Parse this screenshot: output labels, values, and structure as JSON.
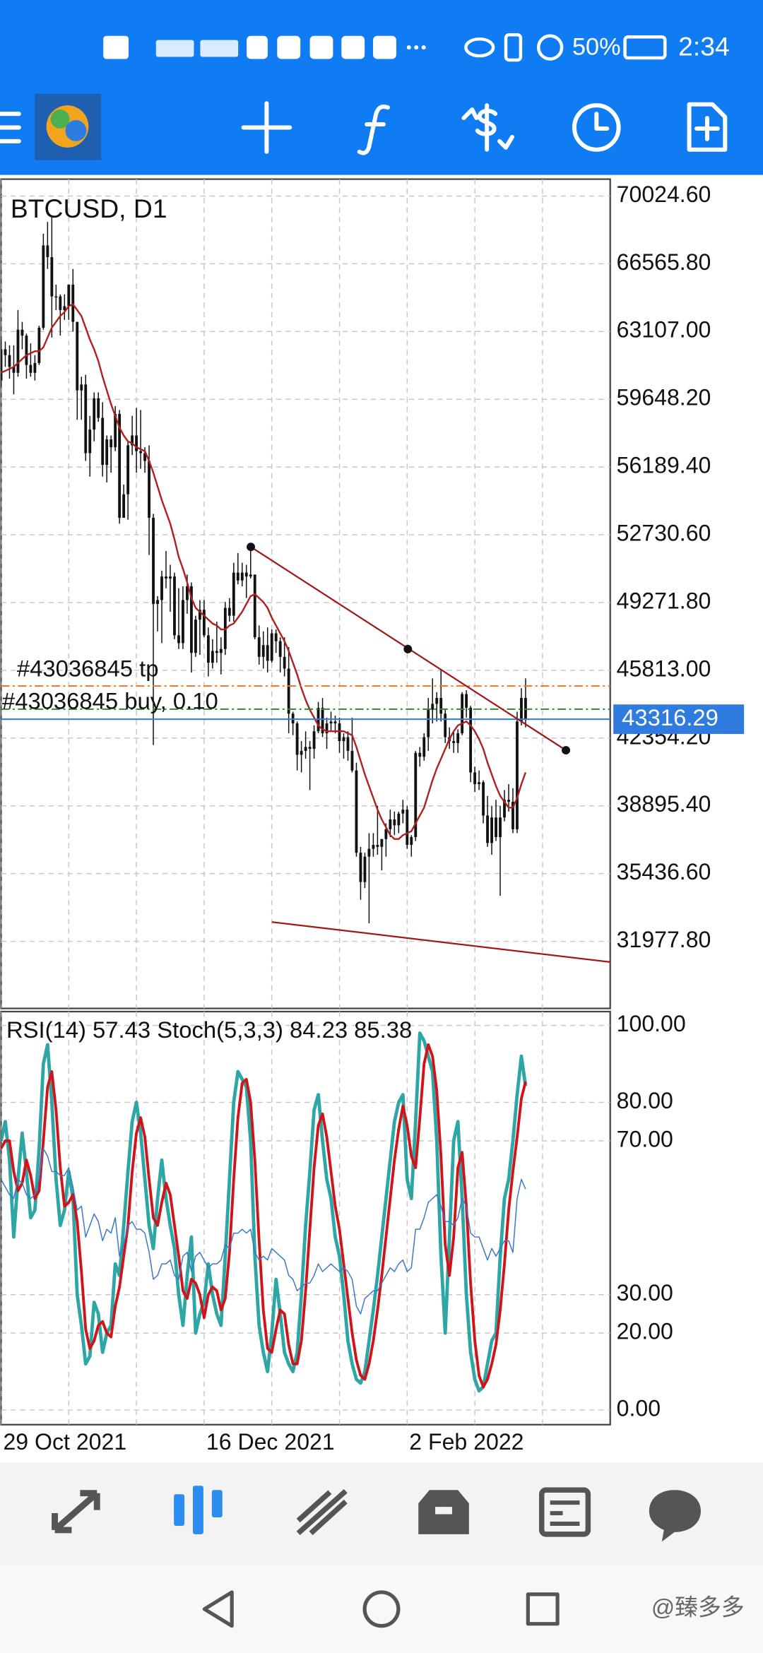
{
  "status_bar": {
    "battery": "50%",
    "time": "2:34"
  },
  "chart_data": [
    {
      "type": "candlestick",
      "title": "BTCUSD, D1",
      "color": "#111111",
      "open": [
        60600,
        62200,
        61900,
        61300,
        61000,
        63200,
        62900,
        61400,
        61000,
        61500,
        63300,
        67500,
        66900,
        64900,
        64900,
        64200,
        64400,
        65500,
        63600,
        60100,
        60400,
        56900,
        58100,
        59700,
        58700,
        56300,
        57600,
        57200,
        58900,
        53600,
        54800,
        57300,
        57800,
        57000,
        56900,
        56500,
        53600,
        49200,
        49400,
        50600,
        50500,
        50600,
        47600,
        47200,
        49400,
        50100,
        46700,
        48400,
        48900,
        47600,
        46200,
        46800,
        46700,
        46900,
        49000,
        48600,
        50800,
        50400,
        50800,
        50600,
        50700,
        47500,
        46500,
        47100,
        46300,
        47700,
        47300,
        46500,
        45900,
        43600,
        43100,
        41500,
        41700,
        41900,
        41800,
        42700,
        43900,
        42600,
        43100,
        43200,
        43100,
        42200,
        42400,
        41700,
        40700,
        36500,
        35000,
        36300,
        36700,
        36900,
        36800,
        37200,
        37700,
        38200,
        37900,
        38500,
        38700,
        36900,
        37300,
        41600,
        41400,
        42400,
        43800,
        44100,
        44400,
        43600,
        42400,
        42200,
        42100,
        42600,
        44600,
        43900,
        40600,
        40000,
        40100,
        38400,
        37000,
        38300,
        37300,
        38300,
        39200,
        39100,
        37700,
        43200,
        44400
      ],
      "high": [
        62700,
        62600,
        62400,
        62400,
        64200,
        63600,
        63000,
        62500,
        61900,
        63400,
        68100,
        68700,
        69000,
        65500,
        65000,
        65000,
        65500,
        66300,
        63600,
        60800,
        60900,
        58800,
        60000,
        60000,
        59500,
        57800,
        57800,
        59300,
        59100,
        55300,
        57500,
        58800,
        59200,
        59100,
        57200,
        57300,
        53800,
        49600,
        50900,
        51900,
        51200,
        50800,
        50000,
        50100,
        50700,
        50300,
        48600,
        49400,
        49400,
        48000,
        47400,
        48300,
        47500,
        49300,
        49500,
        51300,
        51800,
        51300,
        51200,
        52000,
        50700,
        48100,
        47800,
        48000,
        47900,
        47900,
        47500,
        47500,
        47000,
        43700,
        43200,
        42200,
        42700,
        42200,
        43000,
        44200,
        44400,
        43400,
        43700,
        43500,
        43400,
        42600,
        42700,
        43400,
        41100,
        36800,
        36500,
        37500,
        37500,
        38900,
        37200,
        38000,
        38700,
        38600,
        38600,
        39200,
        38900,
        37400,
        41700,
        41900,
        42600,
        44400,
        45400,
        44700,
        45800,
        43800,
        42900,
        42700,
        42800,
        44700,
        44800,
        44000,
        40900,
        40700,
        40200,
        39400,
        38900,
        39200,
        38900,
        39700,
        40000,
        39800,
        43700,
        44900,
        45400
      ],
      "low": [
        60300,
        61300,
        60700,
        59900,
        60800,
        62200,
        60700,
        60800,
        60600,
        61400,
        63200,
        66300,
        62800,
        64200,
        62900,
        63700,
        63700,
        63100,
        58600,
        58600,
        56500,
        55700,
        57500,
        58500,
        55700,
        55400,
        55900,
        57000,
        53300,
        53600,
        53500,
        56800,
        55900,
        56100,
        55900,
        51700,
        42000,
        47800,
        47200,
        50000,
        48800,
        47400,
        46900,
        46900,
        48700,
        45700,
        46500,
        46600,
        47500,
        45500,
        45900,
        46200,
        45600,
        46600,
        48300,
        48300,
        50200,
        50100,
        49500,
        50500,
        47400,
        46100,
        45900,
        45700,
        46200,
        46700,
        45700,
        45500,
        42600,
        42500,
        40700,
        40600,
        41300,
        39700,
        41300,
        42600,
        42400,
        41800,
        42700,
        42600,
        41600,
        41300,
        41200,
        40600,
        36300,
        34100,
        34700,
        32900,
        36300,
        36400,
        35600,
        36300,
        37300,
        37400,
        37500,
        38000,
        36700,
        36300,
        37100,
        40900,
        41200,
        41700,
        43100,
        43200,
        43200,
        42100,
        41800,
        41600,
        41600,
        42500,
        43400,
        40100,
        39600,
        39700,
        38000,
        36800,
        36400,
        37100,
        34300,
        38100,
        38600,
        37500,
        37500,
        43000,
        42900
      ],
      "close": [
        62200,
        61900,
        61300,
        61000,
        63200,
        62900,
        61400,
        61000,
        61500,
        63300,
        67500,
        66900,
        64900,
        64900,
        64200,
        64400,
        65500,
        63600,
        60100,
        60400,
        56900,
        58100,
        59700,
        58700,
        56300,
        57600,
        57200,
        58900,
        53600,
        54800,
        57300,
        57800,
        57000,
        56900,
        56500,
        53600,
        49200,
        49400,
        50600,
        50500,
        50600,
        47600,
        47200,
        49400,
        50100,
        46700,
        48400,
        48900,
        47600,
        46200,
        46800,
        46700,
        46900,
        49000,
        48600,
        50800,
        50400,
        50800,
        50600,
        50700,
        47500,
        46500,
        47100,
        46300,
        47700,
        47300,
        46500,
        45900,
        43600,
        43100,
        41500,
        41700,
        41900,
        41800,
        42700,
        43900,
        42600,
        43100,
        43200,
        43100,
        42200,
        42400,
        41700,
        40700,
        36500,
        35000,
        36300,
        36700,
        36900,
        36800,
        37200,
        37700,
        38200,
        37900,
        38500,
        38700,
        36900,
        37300,
        41600,
        41400,
        42400,
        43800,
        44100,
        44400,
        43600,
        42400,
        42200,
        42100,
        42600,
        44600,
        43900,
        40600,
        40000,
        40100,
        38400,
        37000,
        38300,
        37300,
        38300,
        39200,
        39100,
        37700,
        43200,
        44400,
        43316.29
      ],
      "ma": {
        "color": "#b01e1e",
        "values": [
          61000,
          61100,
          61200,
          61300,
          61500,
          61700,
          61900,
          62000,
          62100,
          62100,
          62300,
          62800,
          63300,
          63600,
          63900,
          64100,
          64400,
          64500,
          64200,
          63900,
          63300,
          62700,
          62200,
          61600,
          60800,
          60100,
          59400,
          58800,
          58200,
          57800,
          57500,
          57400,
          57200,
          57100,
          57000,
          56500,
          55900,
          55200,
          54500,
          53900,
          53300,
          52500,
          51600,
          51000,
          50300,
          49500,
          49000,
          48800,
          48600,
          48400,
          48200,
          48100,
          47900,
          47900,
          48100,
          48200,
          48500,
          48800,
          49200,
          49600,
          49700,
          49500,
          49300,
          49000,
          48500,
          48100,
          47700,
          47300,
          46800,
          46200,
          45600,
          44900,
          44300,
          43800,
          43400,
          43000,
          42800,
          42700,
          42700,
          42700,
          42700,
          42700,
          42600,
          42500,
          41900,
          41200,
          40500,
          39900,
          39300,
          38700,
          38200,
          37800,
          37400,
          37200,
          37200,
          37400,
          37500,
          37600,
          38000,
          38400,
          38800,
          39500,
          40200,
          40800,
          41300,
          41800,
          42300,
          42700,
          43000,
          43100,
          43200,
          43000,
          42700,
          42300,
          41800,
          41100,
          40500,
          39900,
          39400,
          39100,
          38800,
          38800,
          39300,
          40000,
          40600
        ]
      },
      "xlim": [
        0,
        144
      ],
      "xticks": [
        {
          "value": 0,
          "label": "29 Oct 2021"
        },
        {
          "value": 48,
          "label": "16 Dec 2021"
        },
        {
          "value": 96,
          "label": "2 Feb 2022"
        }
      ],
      "xgrid": [
        16,
        32,
        64,
        80,
        112,
        128
      ],
      "ylim": [
        28553,
        70885
      ],
      "yticks": [
        {
          "value": 70024.6,
          "label": "70024.60"
        },
        {
          "value": 66565.8,
          "label": "66565.80"
        },
        {
          "value": 63107,
          "label": "63107.00"
        },
        {
          "value": 59648.2,
          "label": "59648.20"
        },
        {
          "value": 56189.4,
          "label": "56189.40"
        },
        {
          "value": 52730.6,
          "label": "52730.60"
        },
        {
          "value": 49271.8,
          "label": "49271.80"
        },
        {
          "value": 45813,
          "label": "45813.00"
        },
        {
          "value": 42354.2,
          "label": "42354.20"
        },
        {
          "value": 38895.4,
          "label": "38895.40"
        },
        {
          "value": 35436.6,
          "label": "35436.60"
        },
        {
          "value": 31977.8,
          "label": "31977.80"
        }
      ],
      "grid": true,
      "current_price": {
        "value": 43316.29,
        "label": "43316.29",
        "color": "#2f7be0"
      },
      "orders": [
        {
          "label": "#43036845 tp",
          "value": 45010,
          "color": "#e07a2a"
        },
        {
          "label": "#43036845 buy, 0.10",
          "value": 43830,
          "color": "#2e8b2e"
        }
      ]
    },
    {
      "type": "line",
      "title": "RSI(14) 57.43 Stoch(5,3,3) 84.23 85.38",
      "series": [
        {
          "color": "#2ea6a6",
          "width": 3.2,
          "values": [
            70,
            75,
            65,
            45,
            60,
            72,
            62,
            50,
            52,
            68,
            90,
            95,
            80,
            60,
            48,
            52,
            62,
            55,
            30,
            22,
            12,
            14,
            28,
            25,
            15,
            20,
            22,
            38,
            35,
            48,
            62,
            75,
            80,
            72,
            60,
            48,
            42,
            55,
            65,
            55,
            48,
            42,
            30,
            22,
            35,
            45,
            20,
            25,
            28,
            38,
            30,
            25,
            22,
            40,
            60,
            80,
            88,
            86,
            84,
            70,
            40,
            22,
            15,
            10,
            20,
            34,
            25,
            15,
            12,
            10,
            15,
            30,
            48,
            62,
            78,
            82,
            70,
            60,
            55,
            45,
            40,
            30,
            18,
            12,
            8,
            7,
            10,
            18,
            26,
            35,
            45,
            55,
            65,
            75,
            80,
            82,
            60,
            55,
            75,
            98,
            96,
            92,
            88,
            70,
            40,
            20,
            45,
            70,
            75,
            55,
            30,
            15,
            8,
            5,
            6,
            12,
            18,
            20,
            40,
            55,
            60,
            70,
            82,
            92,
            84.23
          ]
        },
        {
          "color": "#d0151a",
          "width": 2.6,
          "values": [
            68,
            70,
            70,
            62,
            57,
            59,
            65,
            61,
            55,
            57,
            70,
            84,
            88,
            78,
            63,
            53,
            54,
            56,
            49,
            36,
            21,
            16,
            18,
            22,
            23,
            20,
            19,
            27,
            32,
            40,
            48,
            62,
            72,
            76,
            71,
            60,
            50,
            48,
            54,
            59,
            56,
            48,
            40,
            31,
            29,
            34,
            33,
            30,
            24,
            30,
            32,
            31,
            26,
            29,
            41,
            60,
            76,
            85,
            86,
            80,
            65,
            44,
            26,
            16,
            15,
            21,
            26,
            25,
            17,
            12,
            12,
            18,
            31,
            47,
            63,
            74,
            77,
            71,
            62,
            53,
            47,
            38,
            29,
            20,
            13,
            9,
            8,
            12,
            18,
            26,
            35,
            45,
            55,
            65,
            73,
            79,
            74,
            66,
            63,
            76,
            90,
            95,
            92,
            83,
            66,
            43,
            35,
            45,
            63,
            67,
            53,
            33,
            18,
            9,
            6,
            8,
            12,
            17,
            26,
            38,
            52,
            62,
            71,
            81,
            85.38
          ]
        },
        {
          "color": "#3a78c8",
          "width": 1,
          "values": [
            60,
            58,
            56,
            55,
            60,
            59,
            56,
            55,
            56,
            60,
            68,
            66,
            62,
            62,
            61,
            61,
            63,
            58,
            52,
            53,
            45,
            48,
            51,
            49,
            44,
            47,
            46,
            50,
            40,
            43,
            48,
            49,
            47,
            47,
            46,
            41,
            34,
            35,
            38,
            38,
            39,
            35,
            34,
            40,
            41,
            36,
            40,
            41,
            39,
            37,
            38,
            38,
            39,
            43,
            42,
            46,
            46,
            47,
            46,
            47,
            41,
            39,
            40,
            39,
            42,
            41,
            40,
            39,
            35,
            34,
            31,
            32,
            33,
            33,
            35,
            38,
            36,
            37,
            38,
            37,
            36,
            37,
            36,
            34,
            27,
            25,
            29,
            30,
            31,
            31,
            33,
            35,
            37,
            36,
            38,
            39,
            36,
            37,
            47,
            47,
            50,
            54,
            55,
            56,
            53,
            49,
            49,
            48,
            50,
            55,
            53,
            46,
            45,
            45,
            42,
            39,
            42,
            40,
            42,
            44,
            44,
            41,
            55,
            60,
            57.43
          ]
        }
      ],
      "ylim": [
        -3.8,
        103.6
      ],
      "yticks": [
        {
          "value": 100,
          "label": "100.00"
        },
        {
          "value": 80,
          "label": "80.00"
        },
        {
          "value": 70,
          "label": "70.00"
        },
        {
          "value": 30,
          "label": "30.00"
        },
        {
          "value": 20,
          "label": "20.00"
        },
        {
          "value": 0,
          "label": "0.00"
        }
      ],
      "grid": true
    }
  ],
  "watermark": "@臻多多"
}
